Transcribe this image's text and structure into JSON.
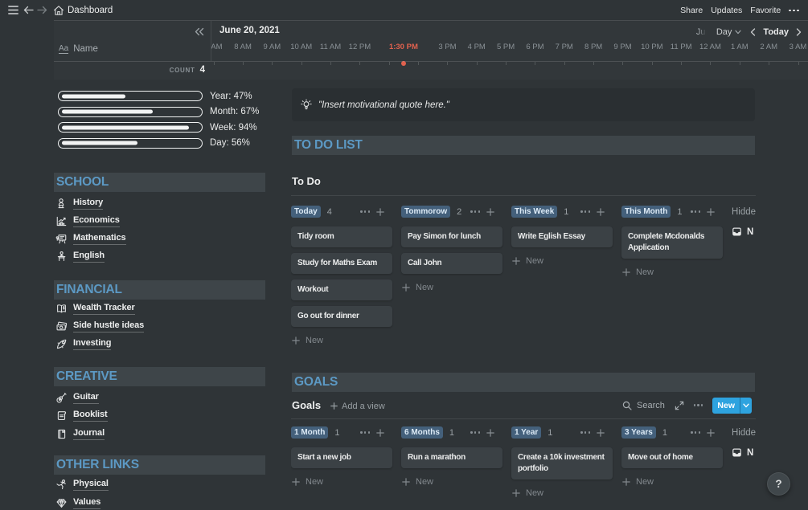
{
  "topbar": {
    "title": "Dashboard",
    "actions": [
      "Share",
      "Updates",
      "Favorite"
    ]
  },
  "timeline": {
    "date": "June 20, 2021",
    "name_property_icon": "Aa",
    "name_column_label": "Name",
    "faded_month": "Jun",
    "view_scale": "Day",
    "today_label": "Today",
    "hour_labels": [
      "7 AM",
      "8 AM",
      "9 AM",
      "10 AM",
      "11 AM",
      "12 PM",
      "",
      "",
      "3 PM",
      "4 PM",
      "5 PM",
      "6 PM",
      "7 PM",
      "8 PM",
      "9 PM",
      "10 PM",
      "11 PM",
      "12 AM",
      "1 AM",
      "2 AM",
      "3 AM"
    ],
    "now_label": "1:30 PM",
    "count_label": "COUNT",
    "count_value": "4"
  },
  "progress": [
    {
      "label": "Year: 47%",
      "percent": 47
    },
    {
      "label": "Month: 67%",
      "percent": 67
    },
    {
      "label": "Week: 94%",
      "percent": 94
    },
    {
      "label": "Day: 56%",
      "percent": 56
    }
  ],
  "nav_sections": [
    {
      "title": "SCHOOL",
      "items": [
        {
          "icon": "bust-icon",
          "label": "History"
        },
        {
          "icon": "chart-icon",
          "label": "Economics"
        },
        {
          "icon": "blackboard-icon",
          "label": "Mathematics"
        },
        {
          "icon": "desk-icon",
          "label": "English"
        }
      ]
    },
    {
      "title": "FINANCIAL",
      "items": [
        {
          "icon": "ledger-icon",
          "label": "Wealth Tracker"
        },
        {
          "icon": "money-icon",
          "label": "Side hustle ideas"
        },
        {
          "icon": "rocket-icon",
          "label": "Investing"
        }
      ]
    },
    {
      "title": "CREATIVE",
      "items": [
        {
          "icon": "guitar-icon",
          "label": "Guitar"
        },
        {
          "icon": "scroll-icon",
          "label": "Booklist"
        },
        {
          "icon": "journal-icon",
          "label": "Journal"
        }
      ]
    },
    {
      "title": "OTHER LINKS",
      "items": [
        {
          "icon": "martial-arts-icon",
          "label": "Physical"
        },
        {
          "icon": "gem-icon",
          "label": "Values"
        }
      ]
    }
  ],
  "quote": {
    "text": "\"Insert motivational quote here.\""
  },
  "todo": {
    "section_title": "TO DO LIST",
    "board_title": "To Do",
    "new_label": "New",
    "hidden_label": "Hidde",
    "hidden_item": "N",
    "columns": [
      {
        "pill": "Today",
        "count": "4",
        "cards": [
          "Tidy room",
          "Study for Maths Exam",
          "Workout",
          "Go out for dinner"
        ]
      },
      {
        "pill": "Tommorow",
        "count": "2",
        "cards": [
          "Pay Simon for lunch",
          "Call John"
        ]
      },
      {
        "pill": "This Week",
        "count": "1",
        "cards": [
          "Write Eglish Essay"
        ]
      },
      {
        "pill": "This Month",
        "count": "1",
        "cards": [
          "Complete Mcdonalds Application"
        ]
      }
    ]
  },
  "goals": {
    "section_title": "GOALS",
    "board_title": "Goals",
    "add_view_label": "Add a view",
    "search_label": "Search",
    "new_button_label": "New",
    "new_label": "New",
    "hidden_label": "Hidde",
    "hidden_item": "N",
    "columns": [
      {
        "pill": "1 Month",
        "count": "1",
        "cards": [
          "Start a new job"
        ]
      },
      {
        "pill": "6 Months",
        "count": "1",
        "cards": [
          "Run a marathon"
        ]
      },
      {
        "pill": "1 Year",
        "count": "1",
        "cards": [
          "Create a 10k investment portfolio"
        ]
      },
      {
        "pill": "3 Years",
        "count": "1",
        "cards": [
          "Move out of home"
        ]
      }
    ]
  },
  "help": {
    "label": "?"
  },
  "colors": {
    "page_bg": "#2F3437",
    "accent_blue": "#5C99C4",
    "button_blue": "#2EA3DF",
    "tag_blue": "#44607B",
    "now_red": "#E0614E"
  }
}
